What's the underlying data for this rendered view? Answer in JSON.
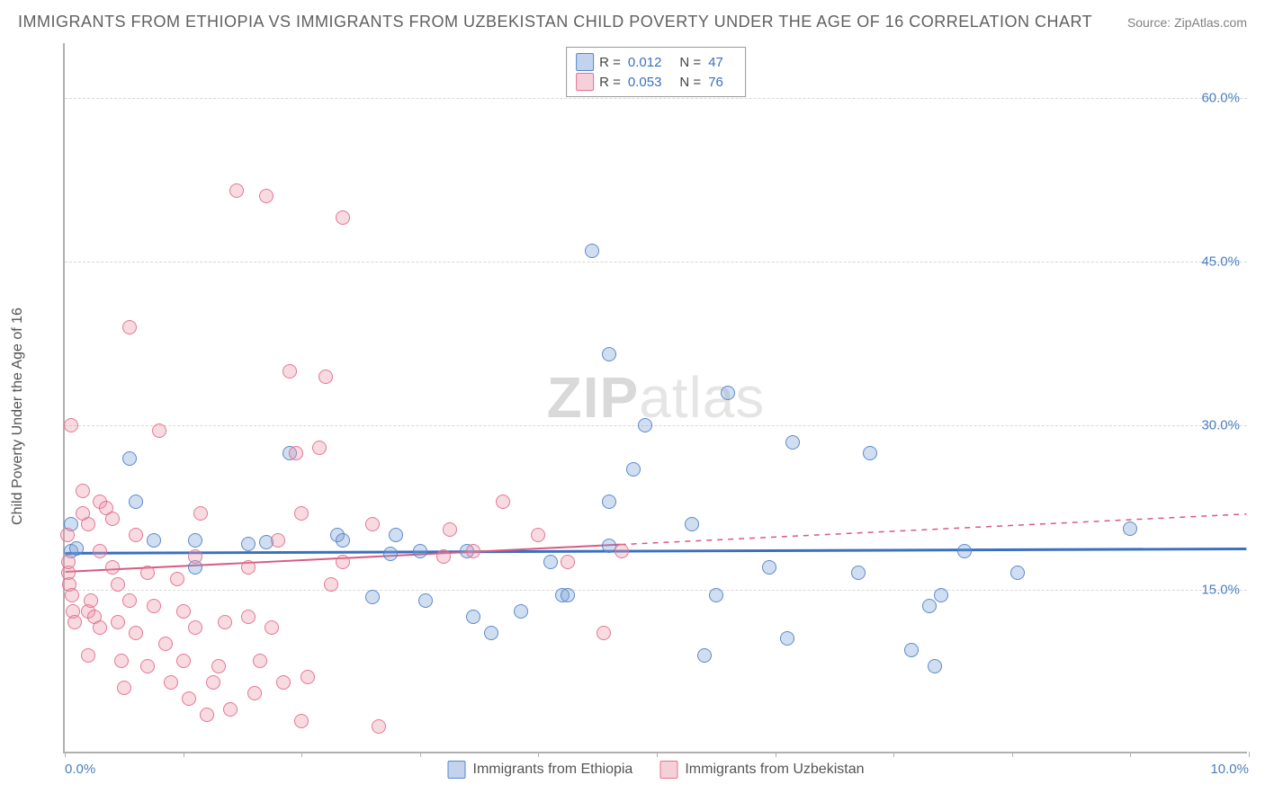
{
  "header": {
    "title": "IMMIGRANTS FROM ETHIOPIA VS IMMIGRANTS FROM UZBEKISTAN CHILD POVERTY UNDER THE AGE OF 16 CORRELATION CHART",
    "source_label": "Source: ZipAtlas.com"
  },
  "watermark": {
    "zip": "ZIP",
    "atlas": "atlas"
  },
  "chart": {
    "type": "scatter",
    "ylabel": "Child Poverty Under the Age of 16",
    "xlim": [
      0,
      10
    ],
    "ylim": [
      0,
      65
    ],
    "y_ticks": [
      {
        "v": 15,
        "label": "15.0%"
      },
      {
        "v": 30,
        "label": "30.0%"
      },
      {
        "v": 45,
        "label": "45.0%"
      },
      {
        "v": 60,
        "label": "60.0%"
      }
    ],
    "x_ticks_minor": [
      0,
      1,
      2,
      3,
      4,
      5,
      6,
      7,
      8,
      9,
      10
    ],
    "x_ticks_labeled": [
      {
        "v": 0,
        "label": "0.0%",
        "cls": "first"
      },
      {
        "v": 10,
        "label": "10.0%",
        "cls": "last"
      }
    ],
    "background_color": "#ffffff",
    "grid_color": "#d8d8d8",
    "series": [
      {
        "name": "Immigrants from Ethiopia",
        "color_fill": "rgba(120,160,215,0.35)",
        "color_stroke": "rgba(80,130,200,0.95)",
        "css_class": "blue",
        "marker_radius_px": 8,
        "R": "0.012",
        "N": "47",
        "trend": {
          "x0": 0,
          "y0": 18.2,
          "x1": 10,
          "y1": 18.6,
          "dash_from_x": 10,
          "stroke": "#3a70c0",
          "width": 3
        },
        "points": [
          [
            0.05,
            18.5
          ],
          [
            0.05,
            21.0
          ],
          [
            0.1,
            18.8
          ],
          [
            0.55,
            27.0
          ],
          [
            0.6,
            23.0
          ],
          [
            0.75,
            19.5
          ],
          [
            1.1,
            17.0
          ],
          [
            1.1,
            19.5
          ],
          [
            1.55,
            19.2
          ],
          [
            1.7,
            19.3
          ],
          [
            1.9,
            27.5
          ],
          [
            2.3,
            20.0
          ],
          [
            2.35,
            19.5
          ],
          [
            2.6,
            14.3
          ],
          [
            2.75,
            18.3
          ],
          [
            2.8,
            20.0
          ],
          [
            3.0,
            18.5
          ],
          [
            3.05,
            14.0
          ],
          [
            3.4,
            18.5
          ],
          [
            3.45,
            12.5
          ],
          [
            3.6,
            11.0
          ],
          [
            3.85,
            13.0
          ],
          [
            4.1,
            17.5
          ],
          [
            4.2,
            14.5
          ],
          [
            4.25,
            14.5
          ],
          [
            4.45,
            46.0
          ],
          [
            4.6,
            36.5
          ],
          [
            4.6,
            23.0
          ],
          [
            4.6,
            19.0
          ],
          [
            4.8,
            26.0
          ],
          [
            4.9,
            30.0
          ],
          [
            5.3,
            21.0
          ],
          [
            5.4,
            9.0
          ],
          [
            5.5,
            14.5
          ],
          [
            5.6,
            33.0
          ],
          [
            5.95,
            17.0
          ],
          [
            6.1,
            10.5
          ],
          [
            6.15,
            28.5
          ],
          [
            6.7,
            16.5
          ],
          [
            6.8,
            27.5
          ],
          [
            7.15,
            9.5
          ],
          [
            7.3,
            13.5
          ],
          [
            7.35,
            8.0
          ],
          [
            7.4,
            14.5
          ],
          [
            7.6,
            18.5
          ],
          [
            8.05,
            16.5
          ],
          [
            9.0,
            20.6
          ]
        ]
      },
      {
        "name": "Immigrants from Uzbekistan",
        "color_fill": "rgba(235,150,170,0.35)",
        "color_stroke": "rgba(225,110,140,0.95)",
        "css_class": "pink",
        "marker_radius_px": 8,
        "R": "0.053",
        "N": "76",
        "trend": {
          "x0": 0,
          "y0": 16.5,
          "x1": 4.7,
          "y1": 19.0,
          "dash_from_x": 4.7,
          "extrap_x1": 10,
          "extrap_y1": 21.8,
          "stroke": "#d85a80",
          "width": 2
        },
        "points": [
          [
            0.02,
            20.0
          ],
          [
            0.03,
            16.5
          ],
          [
            0.03,
            17.5
          ],
          [
            0.04,
            15.5
          ],
          [
            0.06,
            14.5
          ],
          [
            0.07,
            13.0
          ],
          [
            0.08,
            12.0
          ],
          [
            0.05,
            30.0
          ],
          [
            0.15,
            24.0
          ],
          [
            0.15,
            22.0
          ],
          [
            0.2,
            21.0
          ],
          [
            0.2,
            13.0
          ],
          [
            0.2,
            9.0
          ],
          [
            0.22,
            14.0
          ],
          [
            0.25,
            12.5
          ],
          [
            0.3,
            18.5
          ],
          [
            0.3,
            23.0
          ],
          [
            0.3,
            11.5
          ],
          [
            0.35,
            22.5
          ],
          [
            0.4,
            21.5
          ],
          [
            0.4,
            17.0
          ],
          [
            0.45,
            15.5
          ],
          [
            0.45,
            12.0
          ],
          [
            0.48,
            8.5
          ],
          [
            0.5,
            6.0
          ],
          [
            0.55,
            14.0
          ],
          [
            0.55,
            39.0
          ],
          [
            0.6,
            20.0
          ],
          [
            0.6,
            11.0
          ],
          [
            0.7,
            8.0
          ],
          [
            0.7,
            16.5
          ],
          [
            0.75,
            13.5
          ],
          [
            0.8,
            29.5
          ],
          [
            0.85,
            10.0
          ],
          [
            0.9,
            6.5
          ],
          [
            0.95,
            16.0
          ],
          [
            1.0,
            13.0
          ],
          [
            1.0,
            8.5
          ],
          [
            1.05,
            5.0
          ],
          [
            1.1,
            18.0
          ],
          [
            1.1,
            11.5
          ],
          [
            1.15,
            22.0
          ],
          [
            1.2,
            3.5
          ],
          [
            1.25,
            6.5
          ],
          [
            1.3,
            8.0
          ],
          [
            1.35,
            12.0
          ],
          [
            1.4,
            4.0
          ],
          [
            1.45,
            51.5
          ],
          [
            1.55,
            17.0
          ],
          [
            1.55,
            12.5
          ],
          [
            1.6,
            5.5
          ],
          [
            1.65,
            8.5
          ],
          [
            1.7,
            51.0
          ],
          [
            1.75,
            11.5
          ],
          [
            1.8,
            19.5
          ],
          [
            1.85,
            6.5
          ],
          [
            1.9,
            35.0
          ],
          [
            1.95,
            27.5
          ],
          [
            2.0,
            22.0
          ],
          [
            2.0,
            3.0
          ],
          [
            2.05,
            7.0
          ],
          [
            2.15,
            28.0
          ],
          [
            2.2,
            34.5
          ],
          [
            2.25,
            15.5
          ],
          [
            2.35,
            49.0
          ],
          [
            2.35,
            17.5
          ],
          [
            2.6,
            21.0
          ],
          [
            2.65,
            2.5
          ],
          [
            3.2,
            18.0
          ],
          [
            3.25,
            20.5
          ],
          [
            3.45,
            18.5
          ],
          [
            3.7,
            23.0
          ],
          [
            4.0,
            20.0
          ],
          [
            4.25,
            17.5
          ],
          [
            4.55,
            11.0
          ],
          [
            4.7,
            18.5
          ]
        ]
      }
    ],
    "rn_legend": {
      "rows": [
        {
          "R": "0.012",
          "N": "47",
          "swatch": "blue"
        },
        {
          "R": "0.053",
          "N": "76",
          "swatch": "pink"
        }
      ],
      "r_label": "R  =",
      "n_label": "N  ="
    },
    "bottom_legend": [
      {
        "swatch": "blue",
        "label": "Immigrants from Ethiopia"
      },
      {
        "swatch": "pink",
        "label": "Immigrants from Uzbekistan"
      }
    ]
  }
}
